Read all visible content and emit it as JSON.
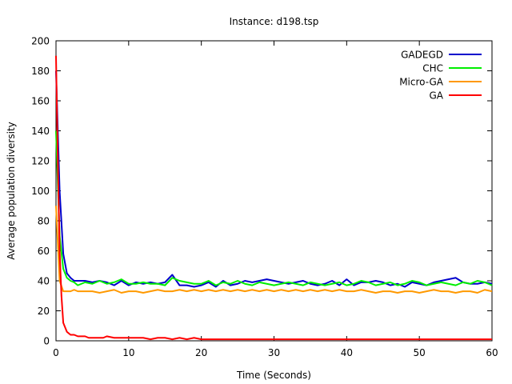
{
  "chart_data": {
    "type": "line",
    "title": "Instance: d198.tsp",
    "xlabel": "Time (Seconds)",
    "ylabel": "Average population diversity",
    "xlim": [
      0,
      60
    ],
    "ylim": [
      0,
      200
    ],
    "x_ticks": [
      0,
      10,
      20,
      30,
      40,
      50,
      60
    ],
    "y_ticks": [
      0,
      20,
      40,
      60,
      80,
      100,
      120,
      140,
      160,
      180,
      200
    ],
    "grid": false,
    "legend_position": "top-right",
    "series": [
      {
        "name": "GADEGD",
        "color": "#0000cc",
        "x": [
          0,
          0.5,
          1,
          1.5,
          2,
          2.5,
          3,
          4,
          5,
          6,
          7,
          8,
          9,
          10,
          11,
          12,
          13,
          14,
          15,
          16,
          17,
          18,
          19,
          20,
          21,
          22,
          23,
          24,
          25,
          26,
          27,
          28,
          29,
          30,
          31,
          32,
          33,
          34,
          35,
          36,
          37,
          38,
          39,
          40,
          41,
          42,
          43,
          44,
          45,
          46,
          47,
          48,
          49,
          50,
          51,
          52,
          53,
          54,
          55,
          56,
          57,
          58,
          59,
          60
        ],
        "y": [
          180,
          100,
          58,
          45,
          42,
          40,
          40,
          40,
          39,
          40,
          39,
          37,
          40,
          37,
          39,
          38,
          39,
          38,
          39,
          44,
          37,
          37,
          36,
          37,
          39,
          36,
          40,
          37,
          38,
          40,
          39,
          40,
          41,
          40,
          39,
          38,
          39,
          40,
          38,
          37,
          38,
          40,
          37,
          41,
          37,
          39,
          39,
          40,
          39,
          37,
          38,
          36,
          39,
          38,
          37,
          39,
          40,
          41,
          42,
          39,
          38,
          38,
          39,
          38
        ]
      },
      {
        "name": "CHC",
        "color": "#00ee00",
        "x": [
          0,
          0.5,
          1,
          1.5,
          2,
          2.5,
          3,
          4,
          5,
          6,
          7,
          8,
          9,
          10,
          11,
          12,
          13,
          14,
          15,
          16,
          17,
          18,
          19,
          20,
          21,
          22,
          23,
          24,
          25,
          26,
          27,
          28,
          29,
          30,
          31,
          32,
          33,
          34,
          35,
          36,
          37,
          38,
          39,
          40,
          41,
          42,
          43,
          44,
          45,
          46,
          47,
          48,
          49,
          50,
          51,
          52,
          53,
          54,
          55,
          56,
          57,
          58,
          59,
          60
        ],
        "y": [
          140,
          70,
          48,
          42,
          40,
          39,
          37,
          39,
          38,
          40,
          38,
          39,
          41,
          38,
          38,
          39,
          38,
          38,
          37,
          42,
          40,
          39,
          38,
          38,
          40,
          37,
          39,
          38,
          40,
          38,
          37,
          39,
          38,
          37,
          38,
          39,
          38,
          37,
          39,
          38,
          37,
          38,
          39,
          37,
          38,
          40,
          39,
          37,
          38,
          39,
          37,
          38,
          40,
          39,
          37,
          38,
          39,
          38,
          37,
          39,
          38,
          40,
          39,
          37
        ]
      },
      {
        "name": "Micro-GA",
        "color": "#ff9900",
        "x": [
          0,
          0.5,
          1,
          1.5,
          2,
          2.5,
          3,
          4,
          5,
          6,
          7,
          8,
          9,
          10,
          11,
          12,
          13,
          14,
          15,
          16,
          17,
          18,
          19,
          20,
          21,
          22,
          23,
          24,
          25,
          26,
          27,
          28,
          29,
          30,
          31,
          32,
          33,
          34,
          35,
          36,
          37,
          38,
          39,
          40,
          41,
          42,
          43,
          44,
          45,
          46,
          47,
          48,
          49,
          50,
          51,
          52,
          53,
          54,
          55,
          56,
          57,
          58,
          59,
          60
        ],
        "y": [
          90,
          40,
          33,
          33,
          33,
          34,
          33,
          33,
          33,
          32,
          33,
          34,
          32,
          33,
          33,
          32,
          33,
          34,
          33,
          33,
          34,
          33,
          34,
          33,
          34,
          33,
          34,
          33,
          34,
          33,
          34,
          33,
          34,
          33,
          34,
          33,
          34,
          33,
          34,
          33,
          34,
          33,
          34,
          33,
          33,
          34,
          33,
          32,
          33,
          33,
          32,
          33,
          33,
          32,
          33,
          34,
          33,
          33,
          32,
          33,
          33,
          32,
          34,
          33
        ]
      },
      {
        "name": "GA",
        "color": "#ff0000",
        "x": [
          0,
          0.25,
          0.5,
          0.75,
          1,
          1.5,
          2,
          2.5,
          3,
          3.5,
          4,
          4.5,
          5,
          5.5,
          6,
          6.5,
          7,
          8,
          9,
          10,
          11,
          12,
          13,
          14,
          15,
          16,
          17,
          18,
          19,
          20,
          22,
          24,
          26,
          28,
          30,
          32,
          34,
          36,
          38,
          40,
          42,
          44,
          46,
          48,
          50,
          52,
          54,
          56,
          58,
          60
        ],
        "y": [
          190,
          120,
          60,
          30,
          12,
          6,
          4,
          4,
          3,
          3,
          3,
          2,
          2,
          2,
          2,
          2,
          3,
          2,
          2,
          2,
          2,
          2,
          1,
          2,
          2,
          1,
          2,
          1,
          2,
          1,
          1,
          1,
          1,
          1,
          1,
          1,
          1,
          1,
          1,
          1,
          1,
          1,
          1,
          1,
          1,
          1,
          1,
          1,
          1,
          1
        ]
      }
    ]
  }
}
